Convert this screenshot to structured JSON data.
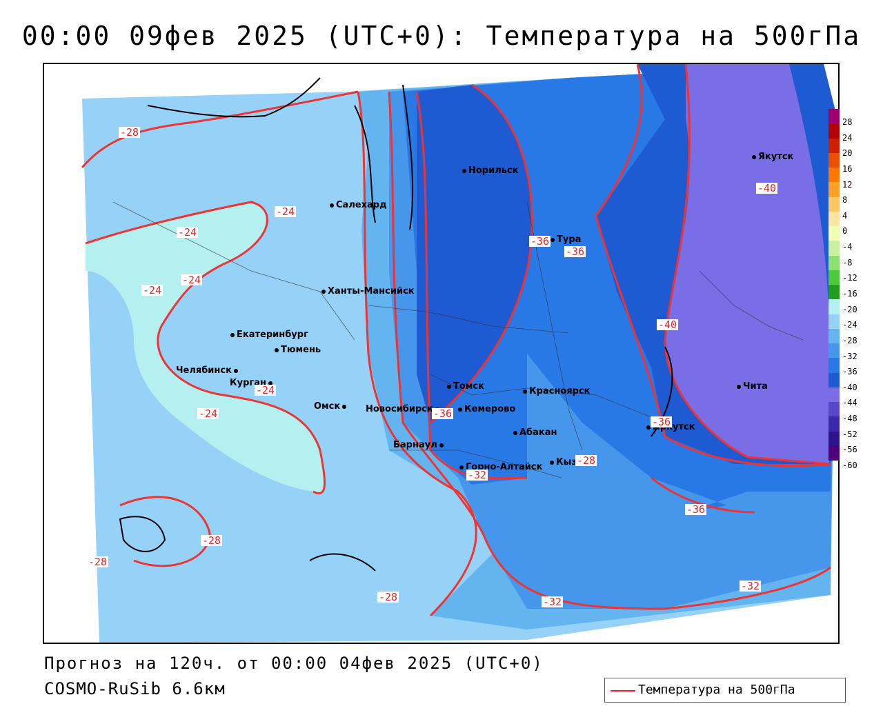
{
  "header": {
    "title": "00:00 09фев 2025 (UTC+0): Температура на 500гПа"
  },
  "footer": {
    "forecast": "Прогноз на 120ч. от 00:00 04фев 2025 (UTC+0)",
    "model": "COSMO-RuSib 6.6км"
  },
  "legend": {
    "series_label": "Температура на 500гПа",
    "line_color": "#ee3333"
  },
  "colorbar": {
    "ticks": [
      "28",
      "24",
      "20",
      "16",
      "12",
      "8",
      "4",
      "0",
      "-4",
      "-8",
      "-12",
      "-16",
      "-20",
      "-24",
      "-28",
      "-32",
      "-36",
      "-40",
      "-44",
      "-48",
      "-52",
      "-56",
      "-60"
    ],
    "colors": [
      "#a0006e",
      "#b40000",
      "#d21e00",
      "#eb5000",
      "#ff7800",
      "#ffa028",
      "#ffc864",
      "#ffe6a0",
      "#f0ffb4",
      "#c8f0a0",
      "#8ce070",
      "#50c83c",
      "#1ea01e",
      "#b4f0f0",
      "#96d2f8",
      "#64b4f0",
      "#4696eb",
      "#2878e6",
      "#1e5ad2",
      "#7a6ee6",
      "#5a46c8",
      "#3c28aa",
      "#2d148c",
      "#500078"
    ]
  },
  "cities": [
    {
      "name": "Норильск"
    },
    {
      "name": "Салехард"
    },
    {
      "name": "Тура"
    },
    {
      "name": "Якутск"
    },
    {
      "name": "Ханты-Мансийск"
    },
    {
      "name": "Екатеринбург"
    },
    {
      "name": "Тюмень"
    },
    {
      "name": "Челябинск"
    },
    {
      "name": "Курган"
    },
    {
      "name": "Омск"
    },
    {
      "name": "Новосибирск"
    },
    {
      "name": "Томск"
    },
    {
      "name": "Кемерово"
    },
    {
      "name": "Красноярск"
    },
    {
      "name": "Абакан"
    },
    {
      "name": "Барнаул"
    },
    {
      "name": "Горно-Алтайск"
    },
    {
      "name": "Кызыл"
    },
    {
      "name": "Иркутск"
    },
    {
      "name": "Чита"
    }
  ],
  "contour_labels": [
    {
      "text": "-28"
    },
    {
      "text": "-24"
    },
    {
      "text": "-24"
    },
    {
      "text": "-24"
    },
    {
      "text": "-24"
    },
    {
      "text": "-24"
    },
    {
      "text": "-24"
    },
    {
      "text": "-28"
    },
    {
      "text": "-28"
    },
    {
      "text": "-28"
    },
    {
      "text": "-32"
    },
    {
      "text": "-32"
    },
    {
      "text": "-36"
    },
    {
      "text": "-36"
    },
    {
      "text": "-36"
    },
    {
      "text": "-40"
    },
    {
      "text": "-40"
    },
    {
      "text": "-36"
    },
    {
      "text": "-32"
    },
    {
      "text": "-28"
    },
    {
      "text": "-36"
    }
  ]
}
